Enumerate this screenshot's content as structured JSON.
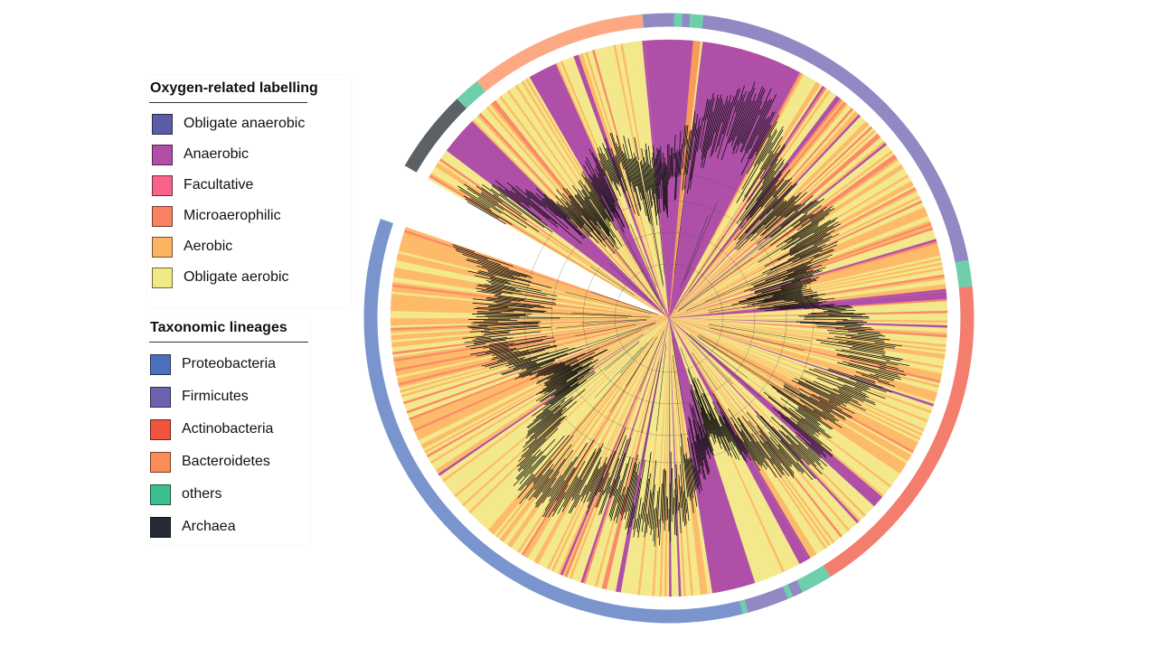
{
  "oxygen_legend": {
    "title": "Oxygen-related labelling",
    "items": [
      {
        "label": "Obligate anaerobic",
        "color": "#5b5ea6"
      },
      {
        "label": "Anaerobic",
        "color": "#b04fa8"
      },
      {
        "label": "Facultative",
        "color": "#f7638a"
      },
      {
        "label": "Microaerophilic",
        "color": "#fa8263"
      },
      {
        "label": "Aerobic",
        "color": "#fdb462"
      },
      {
        "label": "Obligate aerobic",
        "color": "#f1ea84"
      }
    ]
  },
  "taxonomy_legend": {
    "title": "Taxonomic lineages",
    "items": [
      {
        "label": "Proteobacteria",
        "color": "#4d70bd"
      },
      {
        "label": "Firmicutes",
        "color": "#6b62b0"
      },
      {
        "label": "Actinobacteria",
        "color": "#f0533e"
      },
      {
        "label": "Bacteroidetes",
        "color": "#fb8c5a"
      },
      {
        "label": "others",
        "color": "#3dbf8d"
      },
      {
        "label": "Archaea",
        "color": "#252c33"
      }
    ]
  }
}
